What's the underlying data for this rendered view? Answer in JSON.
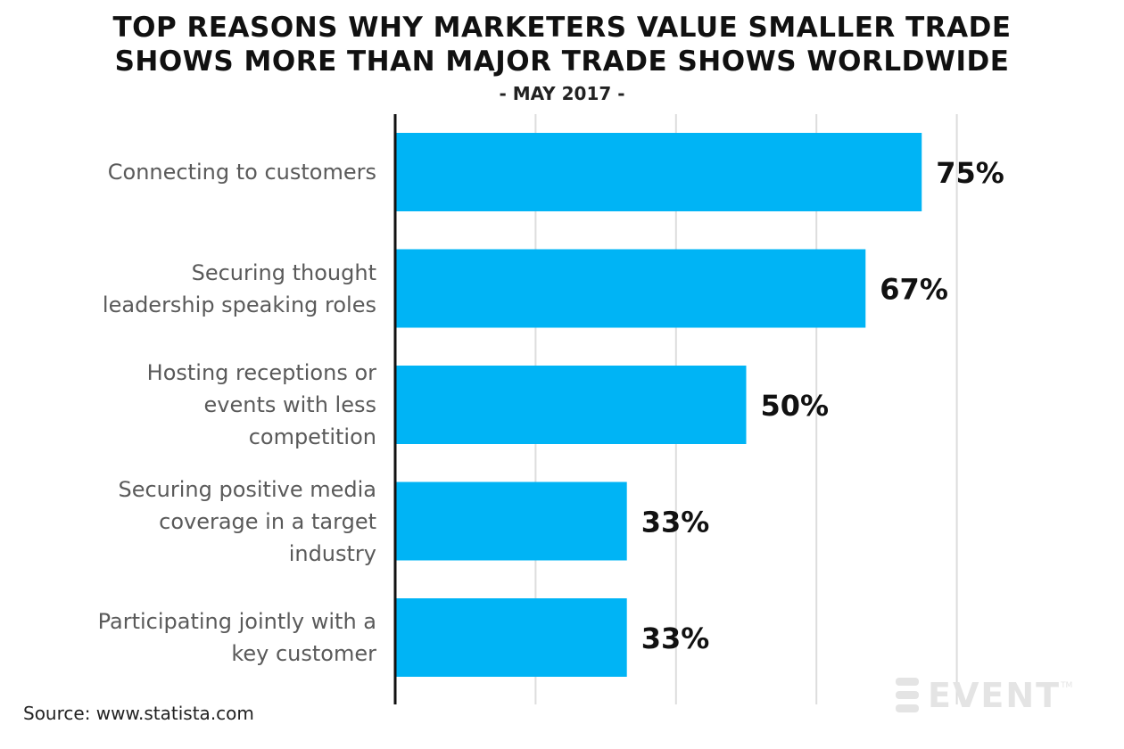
{
  "chart_data": {
    "type": "bar",
    "orientation": "horizontal",
    "title_lines": [
      "TOP REASONS WHY MARKETERS VALUE SMALLER TRADE",
      "SHOWS MORE THAN MAJOR TRADE SHOWS WORLDWIDE"
    ],
    "subtitle": "- MAY 2017 -",
    "categories": [
      [
        "Connecting to customers"
      ],
      [
        "Securing thought",
        "leadership speaking roles"
      ],
      [
        "Hosting receptions or",
        "events with less",
        "competition"
      ],
      [
        "Securing positive media",
        "coverage in a target",
        "industry"
      ],
      [
        "Participating jointly with a",
        "key customer"
      ]
    ],
    "values": [
      75,
      67,
      50,
      33,
      33
    ],
    "value_labels": [
      "75%",
      "67%",
      "50%",
      "33%",
      "33%"
    ],
    "xlim": [
      0,
      90
    ],
    "grid": true,
    "bar_color": "#00b4f5"
  },
  "footer": {
    "source": "Source: www.statista.com",
    "logo_text": "EVENT",
    "logo_tm": "TM"
  },
  "colors": {
    "axis": "#111111",
    "grid": "#dddddd",
    "value_label": "#111111",
    "logo": "#e4e4e4"
  },
  "icons": {
    "logo": "event-logo-icon"
  }
}
